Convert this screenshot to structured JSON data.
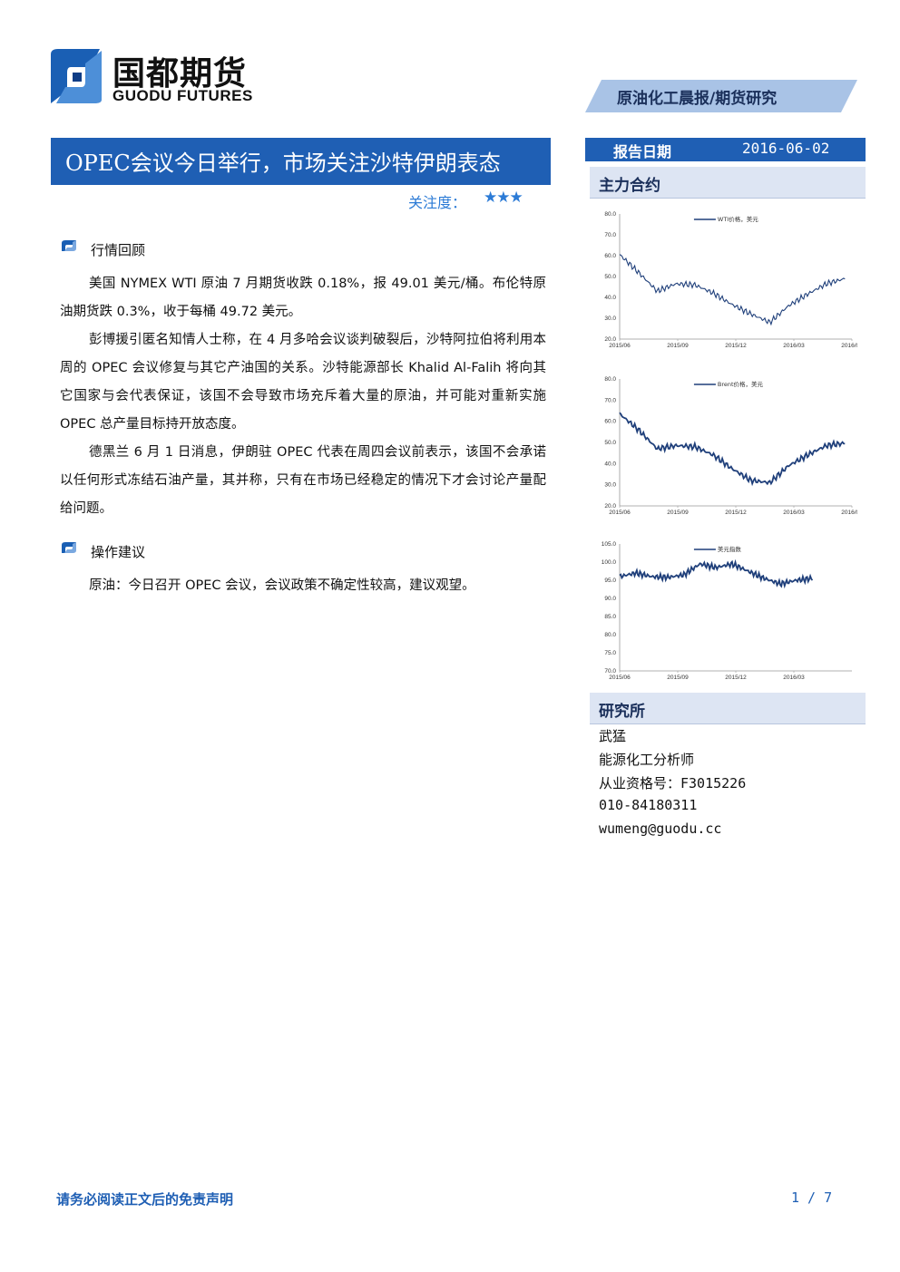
{
  "header": {
    "logo_cn": "国都期货",
    "logo_en": "GUODU FUTURES",
    "banner": "原油化工晨报/期货研究"
  },
  "report": {
    "title": "OPEC会议今日举行，市场关注沙特伊朗表态",
    "attention_label": "关注度：",
    "attention_stars": 3,
    "date_label": "报告日期",
    "date_value": "2016-06-02"
  },
  "sections": [
    {
      "heading": "行情回顾",
      "paragraphs": [
        "美国 NYMEX WTI 原油 7 月期货收跌 0.18%，报 49.01 美元/桶。布伦特原油期货跌 0.3%，收于每桶 49.72 美元。",
        "彭博援引匿名知情人士称，在 4 月多哈会议谈判破裂后，沙特阿拉伯将利用本周的 OPEC 会议修复与其它产油国的关系。沙特能源部长 Khalid Al-Falih 将向其它国家与会代表保证，该国不会导致市场充斥着大量的原油，并可能对重新实施 OPEC 总产量目标持开放态度。",
        "德黑兰 6 月 1 日消息，伊朗驻 OPEC 代表在周四会议前表示，该国不会承诺以任何形式冻结石油产量，其并称，只有在市场已经稳定的情况下才会讨论产量配给问题。"
      ]
    },
    {
      "heading": "操作建议",
      "paragraphs": [
        "原油：今日召开 OPEC 会议，会议政策不确定性较高，建议观望。"
      ]
    }
  ],
  "sidebar": {
    "contracts_heading": "主力合约",
    "research_heading": "研究所",
    "analyst": [
      "武猛",
      "能源化工分析师",
      "从业资格号：F3015226",
      "010-84180311",
      "wumeng@guodu.cc"
    ]
  },
  "chart_data": [
    {
      "type": "line",
      "series": [
        {
          "name": "WTI价格，美元",
          "x": [
            "2015/06",
            "2015/07",
            "2015/08",
            "2015/09",
            "2015/10",
            "2015/11",
            "2015/12",
            "2016/01",
            "2016/02",
            "2016/03",
            "2016/04",
            "2016/05",
            "2016/06"
          ],
          "values": [
            60.5,
            52.0,
            43.0,
            46.5,
            46.0,
            42.0,
            36.5,
            32.0,
            28.0,
            36.0,
            41.5,
            46.5,
            49.0
          ]
        }
      ],
      "x_ticks": [
        "2015/06",
        "2015/09",
        "2015/12",
        "2016/03",
        "2016/06"
      ],
      "y_ticks": [
        "20.0",
        "30.0",
        "40.0",
        "50.0",
        "60.0",
        "70.0",
        "80.0"
      ],
      "ylim": [
        20,
        80
      ]
    },
    {
      "type": "line",
      "series": [
        {
          "name": "Brent价格，美元",
          "x": [
            "2015/06",
            "2015/07",
            "2015/08",
            "2015/09",
            "2015/10",
            "2015/11",
            "2015/12",
            "2016/01",
            "2016/02",
            "2016/03",
            "2016/04",
            "2016/05",
            "2016/06"
          ],
          "values": [
            63.5,
            56.0,
            47.0,
            48.5,
            48.0,
            44.0,
            37.5,
            32.0,
            31.0,
            39.0,
            44.0,
            48.5,
            49.7
          ]
        }
      ],
      "x_ticks": [
        "2015/06",
        "2015/09",
        "2015/12",
        "2016/03",
        "2016/06"
      ],
      "y_ticks": [
        "20.0",
        "30.0",
        "40.0",
        "50.0",
        "60.0",
        "70.0",
        "80.0"
      ],
      "ylim": [
        20,
        80
      ]
    },
    {
      "type": "line",
      "series": [
        {
          "name": "美元指数",
          "x": [
            "2015/06",
            "2015/07",
            "2015/08",
            "2015/09",
            "2015/10",
            "2015/11",
            "2015/12",
            "2016/01",
            "2016/02",
            "2016/03",
            "2016/04",
            "2016/05",
            "2016/06"
          ],
          "values": [
            96.0,
            97.0,
            96.0,
            95.8,
            96.5,
            99.5,
            98.5,
            99.5,
            97.5,
            95.5,
            94.0,
            95.0,
            95.5
          ]
        }
      ],
      "x_ticks": [
        "2015/06",
        "2015/09",
        "2015/12",
        "2016/03"
      ],
      "y_ticks": [
        "70.0",
        "75.0",
        "80.0",
        "85.0",
        "90.0",
        "95.0",
        "100.0",
        "105.0"
      ],
      "ylim": [
        70,
        105
      ]
    }
  ],
  "footer": {
    "disclaimer": "请务必阅读正文后的免责声明",
    "page": "1 / 7"
  },
  "colors": {
    "brand_blue": "#1f5fb4",
    "banner_blue": "#a9c3e6",
    "line": "#1f3f7a"
  }
}
